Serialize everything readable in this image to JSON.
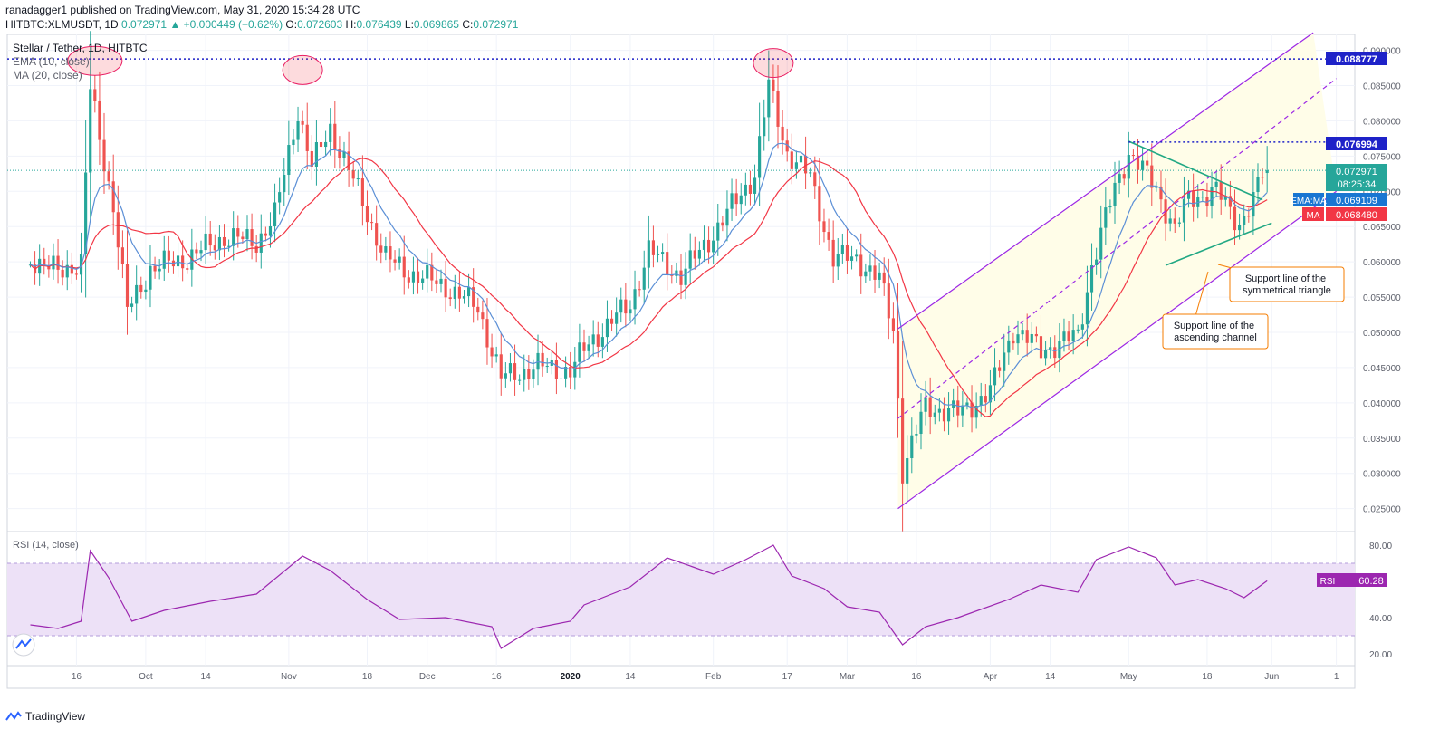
{
  "header": {
    "line1": "ranadagger1 published on TradingView.com, May 31, 2020 15:34:28 UTC",
    "symbol": "HITBTC:XLMUSDT, 1D",
    "last": "0.072971",
    "change": "▲ +0.000449 (+0.62%)",
    "open_label": "O:",
    "open": "0.072603",
    "high_label": "H:",
    "high": "0.076439",
    "low_label": "L:",
    "low": "0.069865",
    "close_label": "C:",
    "close": "0.072971"
  },
  "legend": {
    "title": "Stellar / Tether, 1D, HITBTC",
    "ema": "EMA (10, close)",
    "ma": "MA (20, close)",
    "rsi": "RSI (14, close)"
  },
  "price_badges": {
    "resistance_high": "0.088777",
    "resistance_mid": "0.076994",
    "last_price": "0.072971",
    "countdown": "08:25:34",
    "ema_label": "EMA:MA",
    "ema_value": "0.069109",
    "ma_label": "MA",
    "ma_value": "0.068480",
    "rsi_label": "RSI",
    "rsi_value": "60.28"
  },
  "annotations": {
    "triangle_support": "Support line of the symmetrical triangle",
    "channel_support": "Support line of the ascending channel"
  },
  "colors": {
    "up": "#26a69a",
    "down": "#ef5350",
    "ema": "#5b8fd6",
    "ma": "#f23645",
    "channel": "#9c27e5",
    "triangle": "#22a884",
    "rsi": "#9c27b0",
    "rsi_band": "#ede1f7",
    "channel_fill": "#fffde8",
    "callout": "#f57c00",
    "resistance": "#1e22c8"
  },
  "brand": {
    "name": "TradingView"
  },
  "chart_data": [
    {
      "type": "candlestick",
      "title": "Stellar / Tether, 1D, HITBTC",
      "ylim": [
        0.022,
        0.092
      ],
      "y_ticks": [
        0.025,
        0.03,
        0.035,
        0.04,
        0.045,
        0.05,
        0.055,
        0.06,
        0.065,
        0.07,
        0.075,
        0.08,
        0.085,
        0.09
      ],
      "y_tick_labels": [
        "0.025000",
        "0.030000",
        "0.035000",
        "0.040000",
        "0.045000",
        "0.050000",
        "0.055000",
        "0.060000",
        "0.065000",
        "0.070000",
        "0.075000",
        "0.080000",
        "0.085000",
        "0.090000"
      ],
      "x_ticks": [
        {
          "label": "16",
          "date": "2019-09-16"
        },
        {
          "label": "Oct",
          "date": "2019-10-01"
        },
        {
          "label": "14",
          "date": "2019-10-14"
        },
        {
          "label": "Nov",
          "date": "2019-11-01"
        },
        {
          "label": "18",
          "date": "2019-11-18"
        },
        {
          "label": "Dec",
          "date": "2019-12-01"
        },
        {
          "label": "16",
          "date": "2019-12-16"
        },
        {
          "label": "2020",
          "date": "2020-01-01"
        },
        {
          "label": "14",
          "date": "2020-01-14"
        },
        {
          "label": "Feb",
          "date": "2020-02-01"
        },
        {
          "label": "17",
          "date": "2020-02-17"
        },
        {
          "label": "Mar",
          "date": "2020-03-01"
        },
        {
          "label": "16",
          "date": "2020-03-16"
        },
        {
          "label": "Apr",
          "date": "2020-04-01"
        },
        {
          "label": "14",
          "date": "2020-04-14"
        },
        {
          "label": "May",
          "date": "2020-05-01"
        },
        {
          "label": "18",
          "date": "2020-05-18"
        },
        {
          "label": "Jun",
          "date": "2020-06-01"
        },
        {
          "label": "1",
          "date": "2020-06-15"
        }
      ],
      "close_path": [
        [
          "2019-09-06",
          0.0605
        ],
        [
          "2019-09-12",
          0.0585
        ],
        [
          "2019-09-17",
          0.06
        ],
        [
          "2019-09-19",
          0.0845
        ],
        [
          "2019-09-21",
          0.0775
        ],
        [
          "2019-09-24",
          0.068
        ],
        [
          "2019-09-27",
          0.053
        ],
        [
          "2019-10-02",
          0.059
        ],
        [
          "2019-10-10",
          0.0605
        ],
        [
          "2019-10-18",
          0.0635
        ],
        [
          "2019-10-25",
          0.0628
        ],
        [
          "2019-10-29",
          0.0665
        ],
        [
          "2019-11-03",
          0.0815
        ],
        [
          "2019-11-06",
          0.0735
        ],
        [
          "2019-11-10",
          0.079
        ],
        [
          "2019-11-15",
          0.0715
        ],
        [
          "2019-11-22",
          0.0605
        ],
        [
          "2019-11-27",
          0.0585
        ],
        [
          "2019-12-05",
          0.0565
        ],
        [
          "2019-12-12",
          0.0535
        ],
        [
          "2019-12-17",
          0.0435
        ],
        [
          "2019-12-25",
          0.0452
        ],
        [
          "2020-01-01",
          0.0445
        ],
        [
          "2020-01-05",
          0.0485
        ],
        [
          "2020-01-14",
          0.054
        ],
        [
          "2020-01-18",
          0.0615
        ],
        [
          "2020-01-25",
          0.058
        ],
        [
          "2020-02-01",
          0.064
        ],
        [
          "2020-02-10",
          0.0725
        ],
        [
          "2020-02-13",
          0.085
        ],
        [
          "2020-02-17",
          0.0755
        ],
        [
          "2020-02-22",
          0.072
        ],
        [
          "2020-02-27",
          0.0605
        ],
        [
          "2020-03-03",
          0.0605
        ],
        [
          "2020-03-08",
          0.0575
        ],
        [
          "2020-03-11",
          0.0505
        ],
        [
          "2020-03-13",
          0.0305
        ],
        [
          "2020-03-18",
          0.0395
        ],
        [
          "2020-03-25",
          0.0385
        ],
        [
          "2020-04-01",
          0.0415
        ],
        [
          "2020-04-06",
          0.0505
        ],
        [
          "2020-04-12",
          0.0475
        ],
        [
          "2020-04-20",
          0.0495
        ],
        [
          "2020-04-23",
          0.0595
        ],
        [
          "2020-04-28",
          0.0705
        ],
        [
          "2020-05-01",
          0.0755
        ],
        [
          "2020-05-07",
          0.0705
        ],
        [
          "2020-05-11",
          0.0645
        ],
        [
          "2020-05-14",
          0.069
        ],
        [
          "2020-05-20",
          0.07
        ],
        [
          "2020-05-25",
          0.0655
        ],
        [
          "2020-05-28",
          0.0686
        ],
        [
          "2020-05-30",
          0.0726
        ],
        [
          "2020-05-31",
          0.072971
        ]
      ],
      "last_candle": {
        "date": "2020-05-31",
        "open": 0.072603,
        "high": 0.076439,
        "low": 0.069865,
        "close": 0.072971
      },
      "horizontal_levels": [
        0.088777,
        0.076994,
        0.072971
      ],
      "indicators": [
        {
          "name": "EMA (10, close)",
          "last": 0.069109
        },
        {
          "name": "MA (20, close)",
          "last": 0.06848
        }
      ],
      "trendlines": [
        {
          "name": "ascending channel upper",
          "from": [
            "2020-03-12",
            0.0505
          ],
          "to": [
            "2020-06-10",
            0.0925
          ]
        },
        {
          "name": "ascending channel lower",
          "from": [
            "2020-03-12",
            0.025
          ],
          "to": [
            "2020-06-15",
            0.07
          ]
        },
        {
          "name": "ascending channel middle",
          "from": [
            "2020-03-12",
            0.0378
          ],
          "to": [
            "2020-06-15",
            0.086
          ]
        },
        {
          "name": "triangle resistance",
          "from": [
            "2020-05-01",
            0.0771
          ],
          "to": [
            "2020-05-30",
            0.0688
          ]
        },
        {
          "name": "triangle support",
          "from": [
            "2020-05-09",
            0.0595
          ],
          "to": [
            "2020-06-01",
            0.0655
          ]
        }
      ]
    },
    {
      "type": "line",
      "title": "RSI (14, close)",
      "ylim": [
        15,
        86
      ],
      "y_ticks": [
        20,
        40,
        80
      ],
      "y_tick_labels": [
        "20.00",
        "40.00",
        "80.00"
      ],
      "bands": [
        30,
        70
      ],
      "series": [
        {
          "name": "RSI (14, close)",
          "values": [
            [
              "2019-09-06",
              36
            ],
            [
              "2019-09-12",
              34
            ],
            [
              "2019-09-17",
              38
            ],
            [
              "2019-09-19",
              77
            ],
            [
              "2019-09-23",
              62
            ],
            [
              "2019-09-28",
              38
            ],
            [
              "2019-10-05",
              44
            ],
            [
              "2019-10-15",
              49
            ],
            [
              "2019-10-25",
              53
            ],
            [
              "2019-11-04",
              74
            ],
            [
              "2019-11-10",
              66
            ],
            [
              "2019-11-18",
              50
            ],
            [
              "2019-11-25",
              39
            ],
            [
              "2019-12-05",
              40
            ],
            [
              "2019-12-15",
              35
            ],
            [
              "2019-12-17",
              23
            ],
            [
              "2019-12-24",
              34
            ],
            [
              "2020-01-01",
              38
            ],
            [
              "2020-01-04",
              47
            ],
            [
              "2020-01-14",
              57
            ],
            [
              "2020-01-22",
              73
            ],
            [
              "2020-02-01",
              64
            ],
            [
              "2020-02-08",
              72
            ],
            [
              "2020-02-14",
              80
            ],
            [
              "2020-02-18",
              63
            ],
            [
              "2020-02-25",
              56
            ],
            [
              "2020-03-01",
              46
            ],
            [
              "2020-03-08",
              43
            ],
            [
              "2020-03-13",
              25
            ],
            [
              "2020-03-18",
              35
            ],
            [
              "2020-03-25",
              40
            ],
            [
              "2020-04-05",
              50
            ],
            [
              "2020-04-12",
              58
            ],
            [
              "2020-04-20",
              54
            ],
            [
              "2020-04-24",
              72
            ],
            [
              "2020-05-01",
              79
            ],
            [
              "2020-05-07",
              73
            ],
            [
              "2020-05-11",
              58
            ],
            [
              "2020-05-16",
              61
            ],
            [
              "2020-05-22",
              56
            ],
            [
              "2020-05-26",
              51
            ],
            [
              "2020-05-31",
              60.28
            ]
          ]
        }
      ]
    }
  ]
}
